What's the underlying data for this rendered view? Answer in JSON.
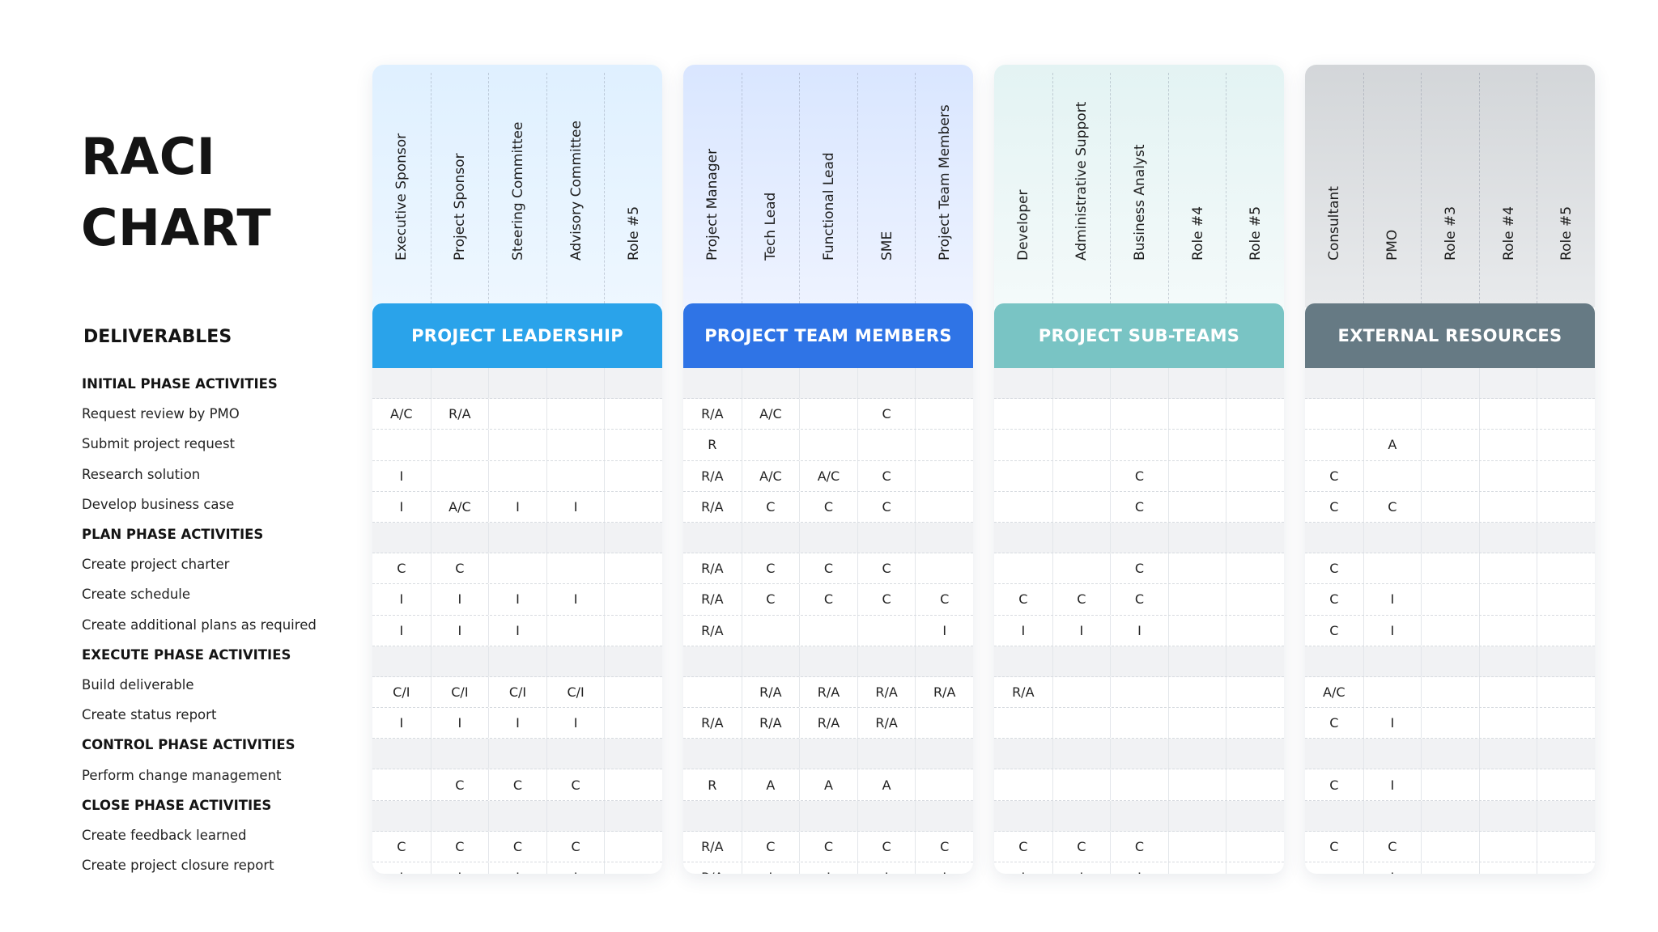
{
  "title": {
    "line1": "RACI",
    "line2": "CHART"
  },
  "deliverables_heading": "DELIVERABLES",
  "rows": [
    {
      "label": "INITIAL PHASE ACTIVITIES",
      "section": true
    },
    {
      "label": "Request review by PMO",
      "section": false
    },
    {
      "label": "Submit project request",
      "section": false
    },
    {
      "label": "Research solution",
      "section": false
    },
    {
      "label": "Develop business case",
      "section": false
    },
    {
      "label": "PLAN PHASE ACTIVITIES",
      "section": true
    },
    {
      "label": "Create project charter",
      "section": false
    },
    {
      "label": "Create schedule",
      "section": false
    },
    {
      "label": "Create additional plans as required",
      "section": false
    },
    {
      "label": "EXECUTE PHASE ACTIVITIES",
      "section": true
    },
    {
      "label": "Build deliverable",
      "section": false
    },
    {
      "label": "Create status report",
      "section": false
    },
    {
      "label": "CONTROL PHASE ACTIVITIES",
      "section": true
    },
    {
      "label": "Perform change management",
      "section": false
    },
    {
      "label": "CLOSE PHASE ACTIVITIES",
      "section": true
    },
    {
      "label": "Create feedback learned",
      "section": false
    },
    {
      "label": "Create project closure report",
      "section": false
    }
  ],
  "groups": [
    {
      "name": "PROJECT LEADERSHIP",
      "band_color": "#2aa3ea",
      "top_gradient": [
        "#dff0ff",
        "#eef7ff"
      ],
      "roles": [
        "Executive Sponsor",
        "Project Sponsor",
        "Steering Committee",
        "Advisory Committee",
        "Role #5"
      ],
      "cells": [
        [
          "",
          "",
          "",
          "",
          ""
        ],
        [
          "A/C",
          "R/A",
          "",
          "",
          ""
        ],
        [
          "",
          "",
          "",
          "",
          ""
        ],
        [
          "I",
          "",
          "",
          "",
          ""
        ],
        [
          "I",
          "A/C",
          "I",
          "I",
          ""
        ],
        [
          "",
          "",
          "",
          "",
          ""
        ],
        [
          "C",
          "C",
          "",
          "",
          ""
        ],
        [
          "I",
          "I",
          "I",
          "I",
          ""
        ],
        [
          "I",
          "I",
          "I",
          "",
          ""
        ],
        [
          "",
          "",
          "",
          "",
          ""
        ],
        [
          "C/I",
          "C/I",
          "C/I",
          "C/I",
          ""
        ],
        [
          "I",
          "I",
          "I",
          "I",
          ""
        ],
        [
          "",
          "",
          "",
          "",
          ""
        ],
        [
          "",
          "C",
          "C",
          "C",
          ""
        ],
        [
          "",
          "",
          "",
          "",
          ""
        ],
        [
          "C",
          "C",
          "C",
          "C",
          ""
        ],
        [
          "I",
          "I",
          "I",
          "I",
          ""
        ]
      ]
    },
    {
      "name": "PROJECT TEAM MEMBERS",
      "band_color": "#2f74e6",
      "top_gradient": [
        "#d9e6ff",
        "#eef3ff"
      ],
      "roles": [
        "Project Manager",
        "Tech Lead",
        "Functional Lead",
        "SME",
        "Project Team Members"
      ],
      "cells": [
        [
          "",
          "",
          "",
          "",
          ""
        ],
        [
          "R/A",
          "A/C",
          "",
          "C",
          ""
        ],
        [
          "R",
          "",
          "",
          "",
          ""
        ],
        [
          "R/A",
          "A/C",
          "A/C",
          "C",
          ""
        ],
        [
          "R/A",
          "C",
          "C",
          "C",
          ""
        ],
        [
          "",
          "",
          "",
          "",
          ""
        ],
        [
          "R/A",
          "C",
          "C",
          "C",
          ""
        ],
        [
          "R/A",
          "C",
          "C",
          "C",
          "C"
        ],
        [
          "R/A",
          "",
          "",
          "",
          "I"
        ],
        [
          "",
          "",
          "",
          "",
          ""
        ],
        [
          "",
          "R/A",
          "R/A",
          "R/A",
          "R/A"
        ],
        [
          "R/A",
          "R/A",
          "R/A",
          "R/A",
          ""
        ],
        [
          "",
          "",
          "",
          "",
          ""
        ],
        [
          "R",
          "A",
          "A",
          "A",
          ""
        ],
        [
          "",
          "",
          "",
          "",
          ""
        ],
        [
          "R/A",
          "C",
          "C",
          "C",
          "C"
        ],
        [
          "R/A",
          "I",
          "I",
          "I",
          "I"
        ]
      ]
    },
    {
      "name": "PROJECT SUB-TEAMS",
      "band_color": "#79c4c4",
      "top_gradient": [
        "#e3f3f3",
        "#f4fafa"
      ],
      "roles": [
        "Developer",
        "Administrative Support",
        "Business Analyst",
        "Role #4",
        "Role #5"
      ],
      "cells": [
        [
          "",
          "",
          "",
          "",
          ""
        ],
        [
          "",
          "",
          "",
          "",
          ""
        ],
        [
          "",
          "",
          "",
          "",
          ""
        ],
        [
          "",
          "",
          "C",
          "",
          ""
        ],
        [
          "",
          "",
          "C",
          "",
          ""
        ],
        [
          "",
          "",
          "",
          "",
          ""
        ],
        [
          "",
          "",
          "C",
          "",
          ""
        ],
        [
          "C",
          "C",
          "C",
          "",
          ""
        ],
        [
          "I",
          "I",
          "I",
          "",
          ""
        ],
        [
          "",
          "",
          "",
          "",
          ""
        ],
        [
          "R/A",
          "",
          "",
          "",
          ""
        ],
        [
          "",
          "",
          "",
          "",
          ""
        ],
        [
          "",
          "",
          "",
          "",
          ""
        ],
        [
          "",
          "",
          "",
          "",
          ""
        ],
        [
          "",
          "",
          "",
          "",
          ""
        ],
        [
          "C",
          "C",
          "C",
          "",
          ""
        ],
        [
          "I",
          "I",
          "I",
          "",
          ""
        ]
      ]
    },
    {
      "name": "EXTERNAL RESOURCES",
      "band_color": "#667a84",
      "top_gradient": [
        "#d3d6d9",
        "#e8eaec"
      ],
      "roles": [
        "Consultant",
        "PMO",
        "Role #3",
        "Role #4",
        "Role #5"
      ],
      "cells": [
        [
          "",
          "",
          "",
          "",
          ""
        ],
        [
          "",
          "",
          "",
          "",
          ""
        ],
        [
          "",
          "A",
          "",
          "",
          ""
        ],
        [
          "C",
          "",
          "",
          "",
          ""
        ],
        [
          "C",
          "C",
          "",
          "",
          ""
        ],
        [
          "",
          "",
          "",
          "",
          ""
        ],
        [
          "C",
          "",
          "",
          "",
          ""
        ],
        [
          "C",
          "I",
          "",
          "",
          ""
        ],
        [
          "C",
          "I",
          "",
          "",
          ""
        ],
        [
          "",
          "",
          "",
          "",
          ""
        ],
        [
          "A/C",
          "",
          "",
          "",
          ""
        ],
        [
          "C",
          "I",
          "",
          "",
          ""
        ],
        [
          "",
          "",
          "",
          "",
          ""
        ],
        [
          "C",
          "I",
          "",
          "",
          ""
        ],
        [
          "",
          "",
          "",
          "",
          ""
        ],
        [
          "C",
          "C",
          "",
          "",
          ""
        ],
        [
          "",
          "I",
          "",
          "",
          ""
        ]
      ]
    }
  ]
}
